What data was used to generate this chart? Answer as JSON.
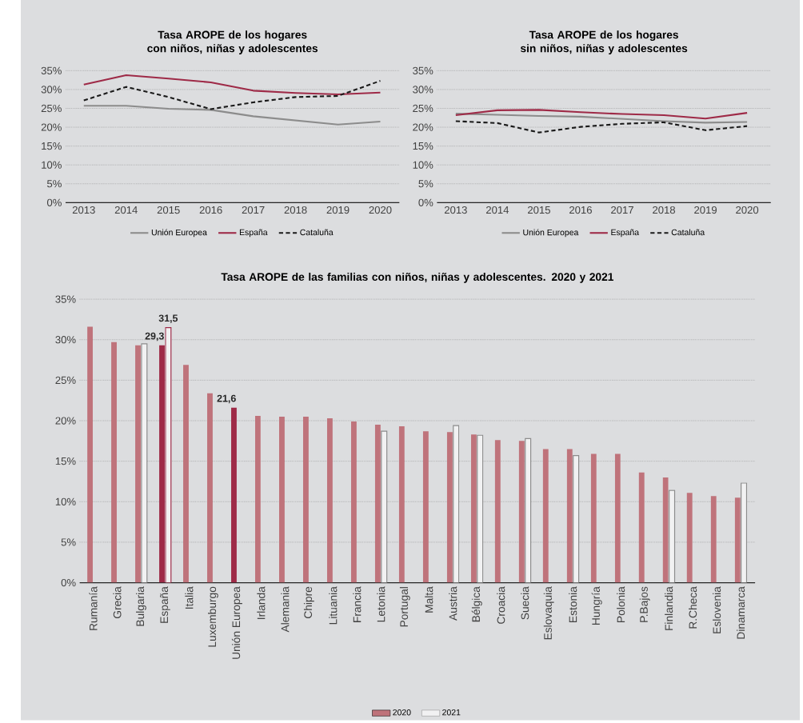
{
  "chart_data": [
    {
      "type": "line",
      "title": "Tasa AROPE de los hogares con niños, niñas y adolescentes",
      "x": [
        2013,
        2014,
        2015,
        2016,
        2017,
        2018,
        2019,
        2020
      ],
      "series": [
        {
          "name": "Unión Europea",
          "color": "#8c8c8c",
          "line_style": "solid",
          "values": [
            25.7,
            25.7,
            24.9,
            24.6,
            22.9,
            21.8,
            20.7,
            21.5
          ]
        },
        {
          "name": "España",
          "color": "#9e2a47",
          "line_style": "solid",
          "values": [
            31.3,
            33.8,
            32.9,
            31.9,
            29.7,
            29.1,
            28.7,
            29.2
          ]
        },
        {
          "name": "Cataluña",
          "color": "#1a1a1a",
          "line_style": "dashed",
          "values": [
            27.1,
            30.7,
            28.0,
            24.8,
            26.6,
            28.0,
            28.3,
            32.3
          ]
        }
      ],
      "xlim": [
        2012.57,
        2020.45
      ],
      "xticks": [
        2013,
        2014,
        2015,
        2016,
        2017,
        2018,
        2019,
        2020
      ],
      "ylim": [
        0,
        35
      ],
      "yticks": [
        {
          "value": 0,
          "label": "0%"
        },
        {
          "value": 5,
          "label": "5%"
        },
        {
          "value": 10,
          "label": "10%"
        },
        {
          "value": 15,
          "label": "15%"
        },
        {
          "value": 20,
          "label": "20%"
        },
        {
          "value": 25,
          "label": "25%"
        },
        {
          "value": 30,
          "label": "30%"
        },
        {
          "value": 35,
          "label": "35%"
        }
      ],
      "grid": "y",
      "legend": "bottom"
    },
    {
      "type": "line",
      "title": "Tasa AROPE de los hogares sin niños, niñas y adolescentes",
      "x": [
        2013,
        2014,
        2015,
        2016,
        2017,
        2018,
        2019,
        2020
      ],
      "series": [
        {
          "name": "Unión Europea",
          "color": "#8c8c8c",
          "line_style": "solid",
          "values": [
            23.6,
            23.3,
            23.0,
            22.8,
            22.2,
            21.6,
            21.2,
            21.4
          ]
        },
        {
          "name": "España",
          "color": "#9e2a47",
          "line_style": "solid",
          "values": [
            23.2,
            24.5,
            24.6,
            24.0,
            23.5,
            23.2,
            22.3,
            23.8
          ]
        },
        {
          "name": "Cataluña",
          "color": "#1a1a1a",
          "line_style": "dashed",
          "values": [
            21.6,
            21.1,
            18.6,
            20.1,
            20.9,
            21.3,
            19.2,
            20.3
          ]
        }
      ],
      "xlim": [
        2012.55,
        2020.57
      ],
      "xticks": [
        2013,
        2014,
        2015,
        2016,
        2017,
        2018,
        2019,
        2020
      ],
      "ylim": [
        0,
        35
      ],
      "yticks": [
        {
          "value": 0,
          "label": "0%"
        },
        {
          "value": 5,
          "label": "5%"
        },
        {
          "value": 10,
          "label": "10%"
        },
        {
          "value": 15,
          "label": "15%"
        },
        {
          "value": 20,
          "label": "20%"
        },
        {
          "value": 25,
          "label": "25%"
        },
        {
          "value": 30,
          "label": "30%"
        },
        {
          "value": 35,
          "label": "35%"
        }
      ],
      "grid": "y",
      "legend": "bottom"
    },
    {
      "type": "bar",
      "title": "Tasa AROPE de las familias con niños, niñas y adolescentes. 2020 y 2021",
      "categories": [
        "Rumanía",
        "Grecia",
        "Bulgaria",
        "España",
        "Italia",
        "Luxemburgo",
        "Unión Europea",
        "Irlanda",
        "Alemania",
        "Chipre",
        "Lituania",
        "Francia",
        "Letonia",
        "Portugal",
        "Malta",
        "Austria",
        "Bélgica",
        "Croacia",
        "Suecia",
        "Eslovaquia",
        "Estonia",
        "Hungría",
        "Polonia",
        "P.Bajos",
        "Finlandia",
        "R.Checa",
        "Eslovenia",
        "Dinamarca"
      ],
      "series": [
        {
          "name": "2020",
          "color": "#bf737b",
          "colors": [
            "#bf737b",
            "#bf737b",
            "#bf737b",
            "#9e2a47",
            "#bf737b",
            "#bf737b",
            "#9e2a47",
            "#bf737b",
            "#bf737b",
            "#bf737b",
            "#bf737b",
            "#bf737b",
            "#bf737b",
            "#bf737b",
            "#bf737b",
            "#bf737b",
            "#bf737b",
            "#bf737b",
            "#bf737b",
            "#bf737b",
            "#bf737b",
            "#bf737b",
            "#bf737b",
            "#bf737b",
            "#bf737b",
            "#bf737b",
            "#bf737b",
            "#bf737b"
          ],
          "values": [
            31.6,
            29.7,
            29.3,
            29.3,
            26.9,
            23.4,
            21.6,
            20.6,
            20.5,
            20.5,
            20.3,
            19.9,
            19.5,
            19.3,
            18.7,
            18.6,
            18.3,
            17.6,
            17.5,
            16.5,
            16.5,
            15.9,
            15.9,
            13.6,
            13.0,
            11.1,
            10.7,
            10.5
          ],
          "value_labels": [
            null,
            null,
            null,
            "29,3",
            null,
            null,
            "21,6",
            null,
            null,
            null,
            null,
            null,
            null,
            null,
            null,
            null,
            null,
            null,
            null,
            null,
            null,
            null,
            null,
            null,
            null,
            null,
            null,
            null
          ]
        },
        {
          "name": "2021",
          "color": "#8c8c8c",
          "colors": [
            "#8c8c8c",
            "#8c8c8c",
            "#8c8c8c",
            "#9e2a47",
            "#8c8c8c",
            "#8c8c8c",
            "#8c8c8c",
            "#8c8c8c",
            "#8c8c8c",
            "#8c8c8c",
            "#8c8c8c",
            "#8c8c8c",
            "#8c8c8c",
            "#8c8c8c",
            "#8c8c8c",
            "#8c8c8c",
            "#8c8c8c",
            "#8c8c8c",
            "#8c8c8c",
            "#8c8c8c",
            "#8c8c8c",
            "#8c8c8c",
            "#8c8c8c",
            "#8c8c8c",
            "#8c8c8c",
            "#8c8c8c",
            "#8c8c8c",
            "#8c8c8c"
          ],
          "values": [
            null,
            null,
            29.5,
            31.5,
            null,
            null,
            null,
            null,
            null,
            null,
            null,
            null,
            18.7,
            null,
            null,
            19.4,
            18.2,
            null,
            17.8,
            null,
            15.7,
            null,
            null,
            null,
            11.4,
            null,
            null,
            12.3
          ],
          "value_labels": [
            null,
            null,
            null,
            "31,5",
            null,
            null,
            null,
            null,
            null,
            null,
            null,
            null,
            null,
            null,
            null,
            null,
            null,
            null,
            null,
            null,
            null,
            null,
            null,
            null,
            null,
            null,
            null,
            null
          ]
        }
      ],
      "ylim": [
        0,
        35
      ],
      "yticks": [
        {
          "value": 0,
          "label": "0%"
        },
        {
          "value": 5,
          "label": "5%"
        },
        {
          "value": 10,
          "label": "10%"
        },
        {
          "value": 15,
          "label": "15%"
        },
        {
          "value": 20,
          "label": "20%"
        },
        {
          "value": 25,
          "label": "25%"
        },
        {
          "value": 30,
          "label": "30%"
        },
        {
          "value": 35,
          "label": "35%"
        }
      ],
      "grid": "y",
      "legend": "bottom"
    }
  ]
}
